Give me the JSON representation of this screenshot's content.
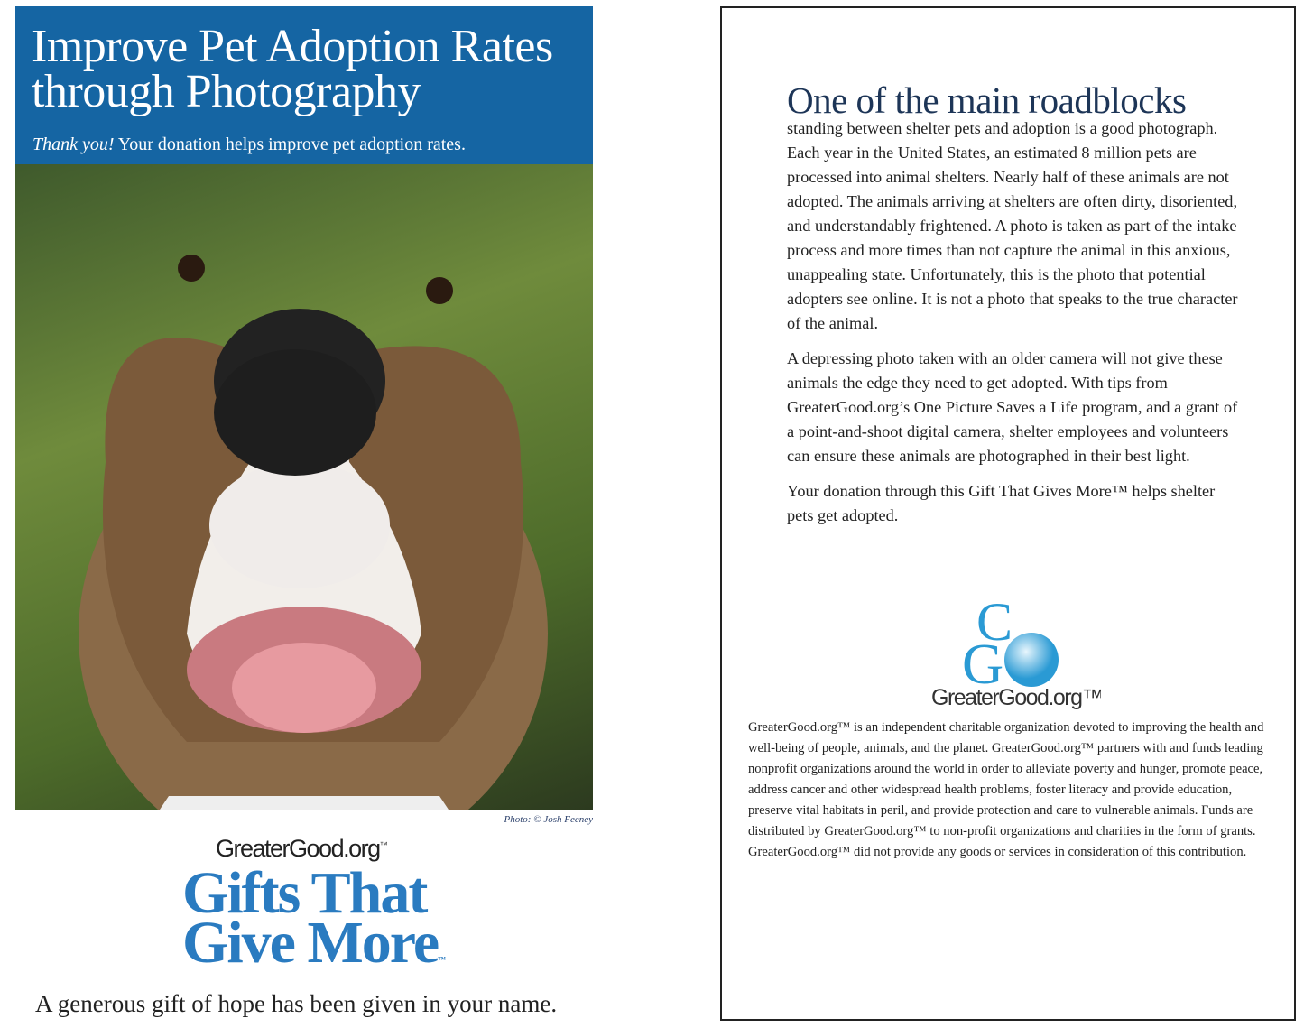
{
  "left_panel": {
    "title_line1": "Improve Pet Adoption Rates",
    "title_line2": "through Photography",
    "subtitle_em": "Thank you!",
    "subtitle_rest": " Your donation helps improve pet adoption rates.",
    "photo_credit": "Photo: © Josh Feeney",
    "logo_brand": "GreaterGood.org",
    "logo_tm": "™",
    "logo_line1": "Gifts That",
    "logo_line2": "Give More",
    "tagline": "A generous gift of hope has been given in your name.",
    "colors": {
      "banner": "#1565a3",
      "logo_blue": "#2a7bc0"
    }
  },
  "right_panel": {
    "heading": "One of the main roadblocks",
    "paragraphs": [
      "standing between shelter pets and adoption is a good photograph. Each year in the United States, an estimated 8 million pets are processed into animal shelters. Nearly half of these animals are not adopted. The animals arriving at shelters are often dirty, disoriented, and understandably frightened. A photo is taken as part of the intake process and more times than not capture the animal in this anxious, unappealing state. Unfortunately, this is the photo that potential adopters see online. It is not a photo that speaks to the true character of the animal.",
      "A depressing photo taken with an older camera will not give these animals the edge they need to get adopted. With tips from GreaterGood.org’s One Picture Saves a Life program, and a grant of a point-and-shoot digital camera, shelter employees and volunteers can ensure these animals are photographed in their best light.",
      "Your donation through this Gift That Gives More™ helps shelter pets get adopted."
    ],
    "logo_text": "GreaterGood.org™",
    "about": "GreaterGood.org™ is an independent charitable organization devoted to improving the health and well-being of people, animals, and the planet. GreaterGood.org™ partners with and funds leading nonprofit organizations around the world in order to alleviate poverty and hunger, promote peace, address cancer and other widespread health problems, foster literacy and provide education, preserve vital habitats in peril, and provide protection and care to vulnerable animals. Funds are distributed by GreaterGood.org™ to non-profit organizations and charities in the form of grants. GreaterGood.org™ did not provide any goods or services in consideration of this contribution.",
    "colors": {
      "heading": "#1d3557",
      "logo_blue": "#2a9ad4"
    }
  }
}
